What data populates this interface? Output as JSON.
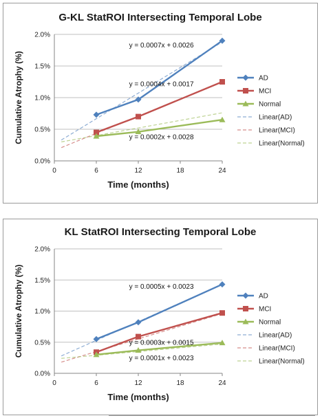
{
  "chart_data": [
    {
      "type": "line",
      "title": "G-KL StatROI Intersecting Temporal Lobe",
      "xlabel": "Time (months)",
      "ylabel": "Cumulative Atrophy (%)",
      "x_ticks": [
        "0",
        "6",
        "12",
        "18",
        "24"
      ],
      "y_ticks": [
        "0.0%",
        "0.5%",
        "1.0%",
        "1.5%",
        "2.0%"
      ],
      "xlim": [
        0,
        24
      ],
      "ylim": [
        0,
        2.0
      ],
      "grid": "horizontal",
      "legend_position": "right",
      "x": [
        6,
        12,
        24
      ],
      "series": [
        {
          "name": "AD",
          "values": [
            0.73,
            0.97,
            1.9
          ],
          "color": "#4f81bd",
          "marker": "diamond"
        },
        {
          "name": "MCI",
          "values": [
            0.45,
            0.7,
            1.25
          ],
          "color": "#c0504d",
          "marker": "square"
        },
        {
          "name": "Normal",
          "values": [
            0.39,
            0.46,
            0.65
          ],
          "color": "#9bbb59",
          "marker": "triangle"
        }
      ],
      "trendlines": [
        {
          "name": "Linear(AD)",
          "series": "AD",
          "x": [
            1,
            24
          ],
          "y": [
            0.33,
            1.88
          ],
          "equation": "y = 0.0007x + 0.0026"
        },
        {
          "name": "Linear(MCI)",
          "series": "MCI",
          "x": [
            1,
            24
          ],
          "y": [
            0.21,
            1.25
          ],
          "equation": "y = 0.0004x + 0.0017"
        },
        {
          "name": "Linear(Normal)",
          "series": "Normal",
          "x": [
            1,
            24
          ],
          "y": [
            0.3,
            0.76
          ],
          "equation": "y = 0.0002x + 0.0028"
        }
      ],
      "equation_labels_at": [
        {
          "x": 15.3,
          "y": 1.83
        },
        {
          "x": 15.3,
          "y": 1.22
        },
        {
          "x": 15.3,
          "y": 0.38
        }
      ]
    },
    {
      "type": "line",
      "title": "KL StatROI Intersecting Temporal Lobe",
      "xlabel": "Time (months)",
      "ylabel": "Cumulative Atrophy (%)",
      "x_ticks": [
        "0",
        "6",
        "12",
        "18",
        "24"
      ],
      "y_ticks": [
        "0.0%",
        "0.5%",
        "1.0%",
        "1.5%",
        "2.0%"
      ],
      "xlim": [
        0,
        24
      ],
      "ylim": [
        0,
        2.0
      ],
      "grid": "horizontal",
      "legend_position": "right",
      "x": [
        6,
        12,
        24
      ],
      "series": [
        {
          "name": "AD",
          "values": [
            0.55,
            0.82,
            1.43
          ],
          "color": "#4f81bd",
          "marker": "diamond"
        },
        {
          "name": "MCI",
          "values": [
            0.34,
            0.59,
            0.97
          ],
          "color": "#c0504d",
          "marker": "square"
        },
        {
          "name": "Normal",
          "values": [
            0.3,
            0.37,
            0.49
          ],
          "color": "#9bbb59",
          "marker": "triangle"
        }
      ],
      "trendlines": [
        {
          "name": "Linear(AD)",
          "series": "AD",
          "x": [
            1,
            24
          ],
          "y": [
            0.28,
            1.43
          ],
          "equation": "y = 0.0005x + 0.0023"
        },
        {
          "name": "Linear(MCI)",
          "series": "MCI",
          "x": [
            1,
            24
          ],
          "y": [
            0.18,
            0.96
          ],
          "equation": "y = 0.0003x + 0.0015"
        },
        {
          "name": "Linear(Normal)",
          "series": "Normal",
          "x": [
            1,
            24
          ],
          "y": [
            0.24,
            0.47
          ],
          "equation": "y = 0.0001x + 0.0023"
        }
      ],
      "equation_labels_at": [
        {
          "x": 15.3,
          "y": 1.4
        },
        {
          "x": 15.3,
          "y": 0.5
        },
        {
          "x": 15.3,
          "y": 0.25
        }
      ]
    }
  ]
}
